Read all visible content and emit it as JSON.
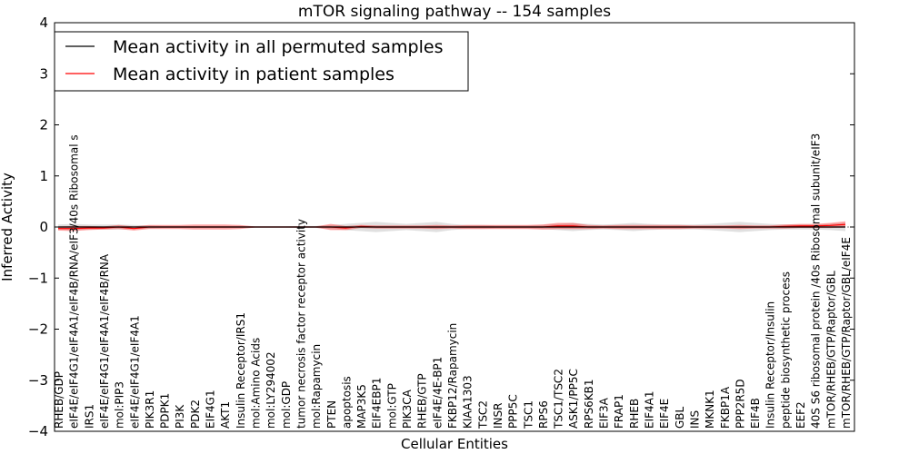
{
  "chart_data": {
    "type": "line",
    "title": "mTOR signaling pathway -- 154 samples",
    "xlabel": "Cellular Entities",
    "ylabel": "Inferred Activity",
    "ylim": [
      -4,
      4
    ],
    "yticks": [
      -4,
      -3,
      -2,
      -1,
      0,
      1,
      2,
      3,
      4
    ],
    "ytick_labels": [
      "−4",
      "−3",
      "−2",
      "−1",
      "0",
      "1",
      "2",
      "3",
      "4"
    ],
    "legend": {
      "placement": "top-left",
      "entries": [
        {
          "label": "Mean activity in all permuted samples",
          "color": "#000000"
        },
        {
          "label": "Mean activity in patient samples",
          "color": "#ff0000"
        }
      ]
    },
    "categories": [
      "RHEB/GDP",
      "eIF4E/eIF4G1/eIF4A1/eIF4B/RNA/eIF3/40s Ribosomal s",
      "IRS1",
      "eIF4E/eIF4G1/eIF4A1/eIF4B/RNA",
      "mol:PIP3",
      "eIF4E/eIF4G1/eIF4A1",
      "PIK3R1",
      "PDPK1",
      "PI3K",
      "PDK2",
      "EIF4G1",
      "AKT1",
      "Insulin Receptor/IRS1",
      "mol:Amino Acids",
      "mol:LY294002",
      "mol:GDP",
      "tumor necrosis factor receptor activity",
      "mol:Rapamycin",
      "PTEN",
      "apoptosis",
      "MAP3K5",
      "EIF4EBP1",
      "mol:GTP",
      "PIK3CA",
      "RHEB/GTP",
      "eIF4E/4E-BP1",
      "FKBP12/Rapamycin",
      "KIAA1303",
      "TSC2",
      "INSR",
      "PPP5C",
      "TSC1",
      "RPS6",
      "TSC1/TSC2",
      "ASK1/PP5C",
      "RPS6KB1",
      "EIF3A",
      "FRAP1",
      "RHEB",
      "EIF4A1",
      "EIF4E",
      "GBL",
      "INS",
      "MKNK1",
      "FKBP1A",
      "PPP2R5D",
      "EIF4B",
      "Insulin Receptor/Insulin",
      "peptide biosynthetic process",
      "EEF2",
      "40S S6 ribosomal protein /40s Ribosomal subunit/eIF3",
      "mTOR/RHEB/GTP/Raptor/GBL",
      "mTOR/RHEB/GTP/Raptor/GBL/eIF4E"
    ],
    "series": [
      {
        "name": "Mean activity in all permuted samples",
        "color": "#000000",
        "values": [
          0,
          0,
          0,
          0,
          0,
          0,
          0,
          0,
          0,
          0,
          0,
          0,
          0,
          0,
          0,
          0,
          0,
          0,
          0,
          0,
          0,
          0,
          0,
          0,
          0,
          0,
          0,
          0,
          0,
          0,
          0,
          0,
          0,
          0,
          0,
          0,
          0,
          0,
          0,
          0,
          0,
          0,
          0,
          0,
          0,
          0,
          0,
          0,
          0,
          0,
          0,
          0,
          0
        ],
        "band": [
          0.05,
          0.06,
          0.05,
          0.05,
          0.05,
          0.04,
          0.03,
          0.02,
          0.02,
          0.02,
          0.02,
          0.02,
          0.02,
          0.01,
          0.01,
          0.01,
          0.02,
          0.02,
          0.04,
          0.06,
          0.08,
          0.1,
          0.08,
          0.06,
          0.08,
          0.1,
          0.06,
          0.04,
          0.04,
          0.03,
          0.03,
          0.03,
          0.04,
          0.06,
          0.08,
          0.06,
          0.05,
          0.06,
          0.08,
          0.06,
          0.05,
          0.05,
          0.05,
          0.06,
          0.08,
          0.1,
          0.08,
          0.06,
          0.05,
          0.05,
          0.05,
          0.06,
          0.08
        ]
      },
      {
        "name": "Mean activity in patient samples",
        "color": "#ff0000",
        "values": [
          -0.03,
          -0.03,
          -0.02,
          -0.02,
          0.0,
          -0.03,
          0.0,
          0.0,
          0.0,
          0.0,
          0.0,
          0.0,
          0.0,
          0.0,
          0.0,
          0.0,
          0.0,
          0.0,
          0.0,
          -0.02,
          0.01,
          0.0,
          0.0,
          0.0,
          0.0,
          0.0,
          0.0,
          0.0,
          0.0,
          0.0,
          0.0,
          0.0,
          0.0,
          0.02,
          0.02,
          0.0,
          0.0,
          0.0,
          0.0,
          0.0,
          0.0,
          0.0,
          0.0,
          0.0,
          0.0,
          0.0,
          0.0,
          0.0,
          0.01,
          0.02,
          0.02,
          0.03,
          0.05
        ],
        "band": [
          0.04,
          0.05,
          0.04,
          0.03,
          0.04,
          0.04,
          0.04,
          0.04,
          0.04,
          0.05,
          0.05,
          0.05,
          0.04,
          0.01,
          0.01,
          0.01,
          0.01,
          0.01,
          0.06,
          0.04,
          0.03,
          0.03,
          0.03,
          0.03,
          0.03,
          0.04,
          0.03,
          0.04,
          0.04,
          0.04,
          0.04,
          0.04,
          0.05,
          0.06,
          0.06,
          0.04,
          0.03,
          0.04,
          0.04,
          0.04,
          0.04,
          0.04,
          0.03,
          0.03,
          0.03,
          0.04,
          0.03,
          0.03,
          0.04,
          0.04,
          0.04,
          0.05,
          0.06
        ]
      }
    ]
  }
}
